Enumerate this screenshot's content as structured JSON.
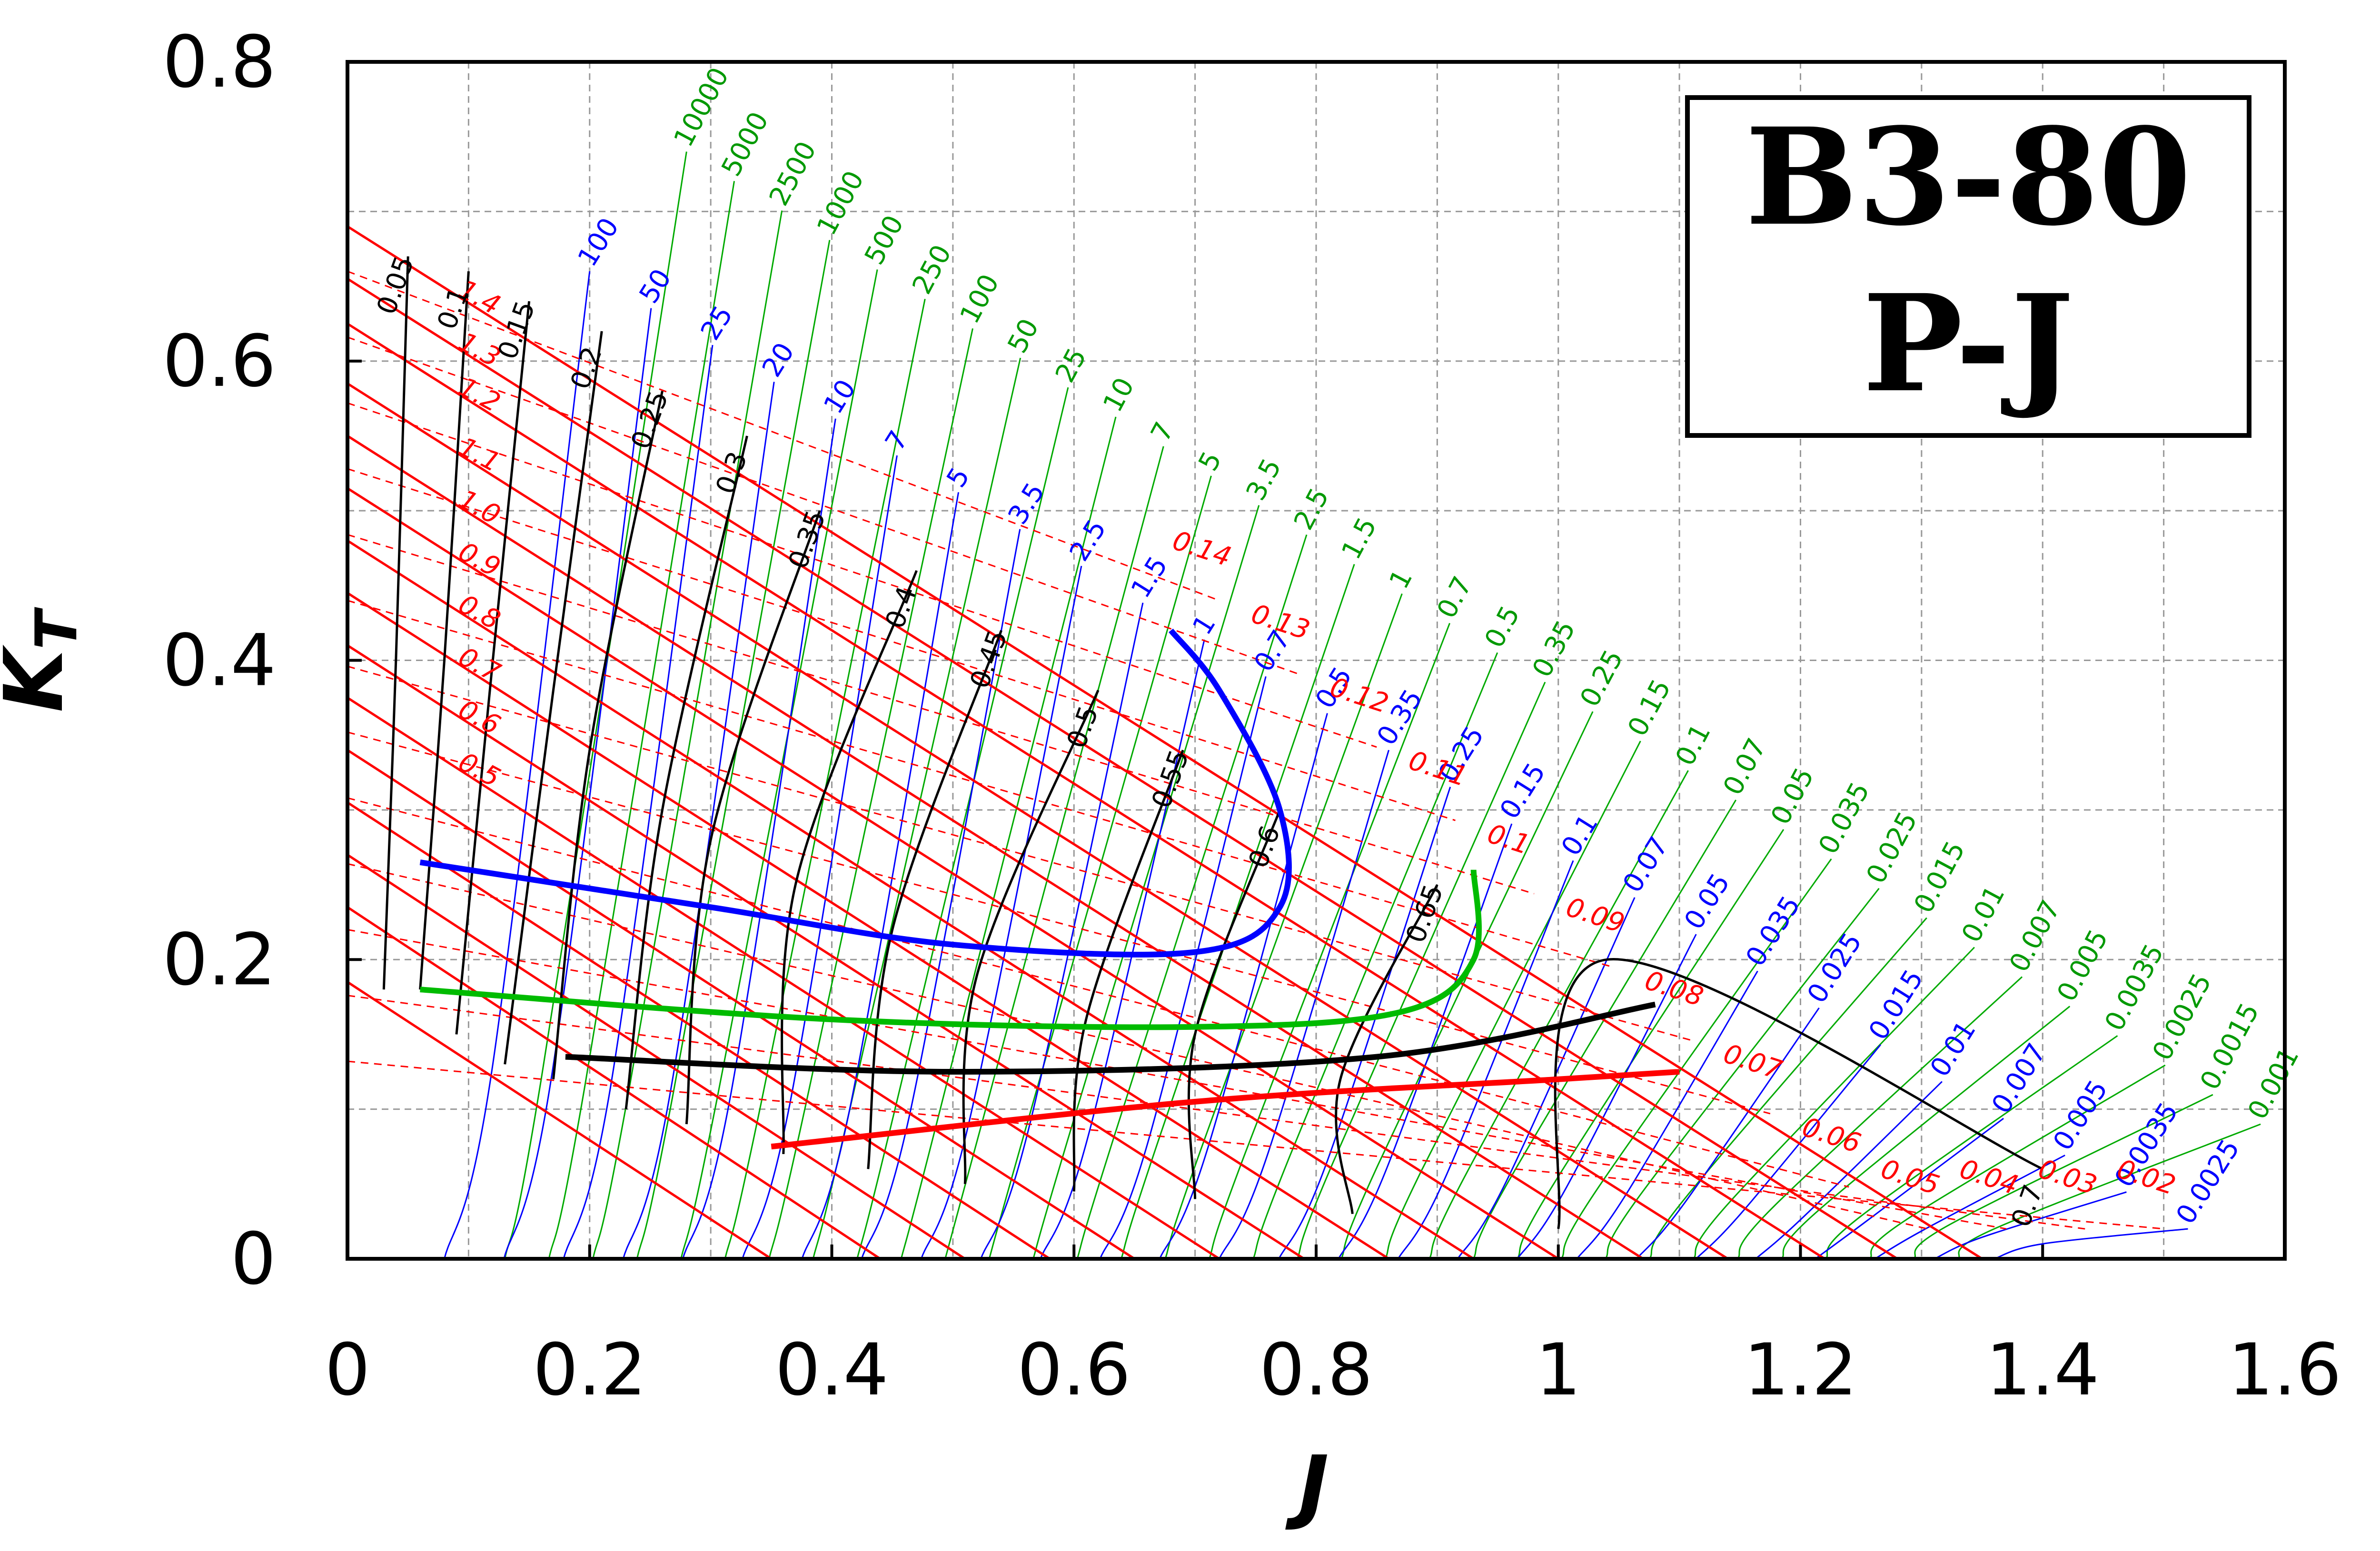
{
  "chart_data": {
    "type": "line",
    "title_lines": [
      "B3-80",
      "P-J"
    ],
    "xlabel": "J",
    "ylabel_main": "K",
    "ylabel_sub": "T",
    "xlim": [
      0,
      1.6
    ],
    "ylim": [
      0,
      0.8
    ],
    "xticks": [
      "0",
      "0.2",
      "0.4",
      "0.6",
      "0.8",
      "1",
      "1.2",
      "1.4",
      "1.6"
    ],
    "yticks": [
      "0",
      "0.2",
      "0.4",
      "0.6",
      "0.8"
    ],
    "grid": true,
    "colors": {
      "pitch_ratio": "#ff0000",
      "efficiency": "#000000",
      "bp_coefficient": "#0000ff",
      "delta_coefficient": "#00aa00",
      "optimum_bp": "#0000ff",
      "optimum_delta": "#00bb00",
      "optimum_eta": "#000000",
      "optimum_pitch": "#ff0000"
    },
    "pitch_ratio_labels": [
      "1.4",
      "1.3",
      "1.2",
      "1.1",
      "1.0",
      "0.9",
      "0.8",
      "0.7",
      "0.6",
      "0.5"
    ],
    "eta_labels": [
      "0.05",
      "0.1",
      "0.15",
      "0.2",
      "0.25",
      "0.3",
      "0.35",
      "0.4",
      "0.45",
      "0.5",
      "0.55",
      "0.6",
      "0.65",
      "0.7"
    ],
    "bp_labels": [
      "100",
      "50",
      "25",
      "20",
      "10",
      "7",
      "5",
      "3.5",
      "2.5",
      "1.5",
      "1",
      "0.7",
      "0.5",
      "0.35",
      "0.25",
      "0.15",
      "0.1",
      "0.07",
      "0.05",
      "0.035",
      "0.025",
      "0.015",
      "0.01",
      "0.007",
      "0.005",
      "0.0035",
      "0.0025"
    ],
    "delta_labels": [
      "10000",
      "5000",
      "2500",
      "1000",
      "500",
      "250",
      "100",
      "50",
      "25",
      "10",
      "7",
      "5",
      "3.5",
      "2.5",
      "1.5",
      "1",
      "0.7",
      "0.5",
      "0.35",
      "0.25",
      "0.15",
      "0.1",
      "0.07",
      "0.05",
      "0.035",
      "0.025",
      "0.015",
      "0.01",
      "0.007",
      "0.005",
      "0.0035",
      "0.0025",
      "0.0015",
      "0.001"
    ],
    "kq10_labels": [
      "0.14",
      "0.13",
      "0.12",
      "0.11",
      "0.1",
      "0.09",
      "0.08",
      "0.07",
      "0.06",
      "0.05",
      "0.04",
      "0.03",
      "0.02"
    ],
    "pitch_lines": [
      {
        "label": "1.4",
        "p": [
          [
            0,
            0.69
          ],
          [
            1.35,
            0.0
          ]
        ]
      },
      {
        "label": "1.3",
        "p": [
          [
            0,
            0.655
          ],
          [
            1.28,
            0.0
          ]
        ]
      },
      {
        "label": "1.2",
        "p": [
          [
            0,
            0.625
          ],
          [
            1.22,
            0.0
          ]
        ]
      },
      {
        "label": "1.1",
        "p": [
          [
            0,
            0.585
          ],
          [
            1.14,
            0.0
          ]
        ]
      },
      {
        "label": "1.0",
        "p": [
          [
            0,
            0.55
          ],
          [
            1.07,
            0.0
          ]
        ]
      },
      {
        "label": "0.9",
        "p": [
          [
            0,
            0.515
          ],
          [
            1.0,
            0.0
          ]
        ]
      },
      {
        "label": "0.8",
        "p": [
          [
            0,
            0.48
          ],
          [
            0.93,
            0.0
          ]
        ]
      },
      {
        "label": "0.7",
        "p": [
          [
            0,
            0.445
          ],
          [
            0.86,
            0.0
          ]
        ]
      },
      {
        "label": "0.6",
        "p": [
          [
            0,
            0.41
          ],
          [
            0.79,
            0.0
          ]
        ]
      },
      {
        "label": "0.5",
        "p": [
          [
            0,
            0.375
          ],
          [
            0.72,
            0.0
          ]
        ]
      },
      {
        "label": "",
        "p": [
          [
            0,
            0.34
          ],
          [
            0.65,
            0.0
          ]
        ]
      },
      {
        "label": "",
        "p": [
          [
            0,
            0.305
          ],
          [
            0.58,
            0.0
          ]
        ]
      },
      {
        "label": "",
        "p": [
          [
            0,
            0.27
          ],
          [
            0.51,
            0.0
          ]
        ]
      },
      {
        "label": "",
        "p": [
          [
            0,
            0.235
          ],
          [
            0.44,
            0.0
          ]
        ]
      },
      {
        "label": "",
        "p": [
          [
            0,
            0.185
          ],
          [
            0.35,
            0.0
          ]
        ]
      }
    ],
    "eta_curves": [
      {
        "label": "0.05",
        "p": [
          [
            0.03,
            0.18
          ],
          [
            0.04,
            0.4
          ],
          [
            0.05,
            0.67
          ]
        ]
      },
      {
        "label": "0.1",
        "p": [
          [
            0.06,
            0.18
          ],
          [
            0.08,
            0.4
          ],
          [
            0.1,
            0.66
          ]
        ]
      },
      {
        "label": "0.15",
        "p": [
          [
            0.09,
            0.15
          ],
          [
            0.12,
            0.4
          ],
          [
            0.15,
            0.64
          ]
        ]
      },
      {
        "label": "0.2",
        "p": [
          [
            0.13,
            0.13
          ],
          [
            0.17,
            0.38
          ],
          [
            0.21,
            0.62
          ]
        ]
      },
      {
        "label": "0.25",
        "p": [
          [
            0.17,
            0.12
          ],
          [
            0.2,
            0.34
          ],
          [
            0.26,
            0.58
          ]
        ]
      },
      {
        "label": "0.3",
        "p": [
          [
            0.23,
            0.1
          ],
          [
            0.26,
            0.3
          ],
          [
            0.33,
            0.55
          ]
        ]
      },
      {
        "label": "0.35",
        "p": [
          [
            0.28,
            0.09
          ],
          [
            0.3,
            0.28
          ],
          [
            0.39,
            0.5
          ]
        ]
      },
      {
        "label": "0.4",
        "p": [
          [
            0.36,
            0.07
          ],
          [
            0.37,
            0.25
          ],
          [
            0.47,
            0.46
          ]
        ]
      },
      {
        "label": "0.45",
        "p": [
          [
            0.43,
            0.06
          ],
          [
            0.45,
            0.22
          ],
          [
            0.54,
            0.42
          ]
        ]
      },
      {
        "label": "0.5",
        "p": [
          [
            0.51,
            0.05
          ],
          [
            0.52,
            0.19
          ],
          [
            0.62,
            0.38
          ]
        ]
      },
      {
        "label": "0.55",
        "p": [
          [
            0.6,
            0.045
          ],
          [
            0.61,
            0.16
          ],
          [
            0.69,
            0.34
          ]
        ]
      },
      {
        "label": "0.6",
        "p": [
          [
            0.7,
            0.04
          ],
          [
            0.7,
            0.15
          ],
          [
            0.77,
            0.3
          ]
        ]
      },
      {
        "label": "0.65",
        "p": [
          [
            0.83,
            0.03
          ],
          [
            0.82,
            0.12
          ],
          [
            0.9,
            0.25
          ]
        ]
      },
      {
        "label": "0.7",
        "p": [
          [
            1.0,
            0.02
          ],
          [
            1.04,
            0.2
          ],
          [
            1.4,
            0.06
          ]
        ]
      }
    ],
    "bp_curves_count": 27,
    "delta_curves_count": 34,
    "optimum_bp_curve": [
      [
        0.06,
        0.265
      ],
      [
        0.3,
        0.235
      ],
      [
        0.5,
        0.21
      ],
      [
        0.7,
        0.205
      ],
      [
        0.77,
        0.235
      ],
      [
        0.77,
        0.3
      ],
      [
        0.72,
        0.38
      ],
      [
        0.68,
        0.42
      ]
    ],
    "optimum_delta_curve": [
      [
        0.06,
        0.18
      ],
      [
        0.4,
        0.16
      ],
      [
        0.7,
        0.155
      ],
      [
        0.87,
        0.165
      ],
      [
        0.93,
        0.2
      ],
      [
        0.93,
        0.26
      ]
    ],
    "optimum_eta_curve": [
      [
        0.18,
        0.135
      ],
      [
        0.5,
        0.125
      ],
      [
        0.85,
        0.135
      ],
      [
        1.08,
        0.17
      ]
    ],
    "optimum_pitch_curve": [
      [
        0.35,
        0.075
      ],
      [
        0.7,
        0.105
      ],
      [
        1.0,
        0.12
      ],
      [
        1.1,
        0.125
      ]
    ]
  }
}
